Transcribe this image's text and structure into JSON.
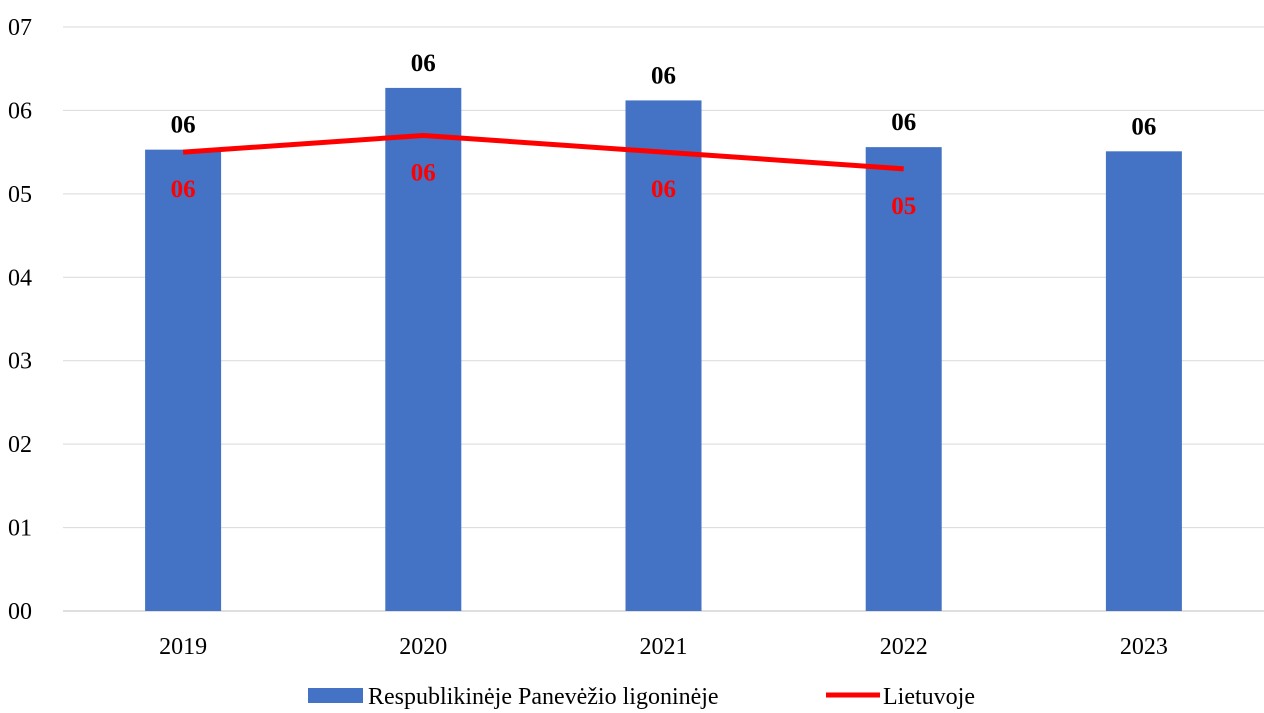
{
  "chart_data": {
    "type": "bar",
    "categories": [
      "2019",
      "2020",
      "2021",
      "2022",
      "2023"
    ],
    "y_ticks": [
      "00",
      "01",
      "02",
      "03",
      "04",
      "05",
      "06",
      "07"
    ],
    "ylim": [
      0,
      0.7
    ],
    "grid": true,
    "legend_position": "bottom",
    "series": [
      {
        "name": "Respublikinėje Panevėžio ligoninėje",
        "type": "bar",
        "color": "#4472C4",
        "values": [
          0.553,
          0.627,
          0.612,
          0.556,
          0.551
        ],
        "labels": [
          "06",
          "06",
          "06",
          "06",
          "06"
        ]
      },
      {
        "name": "Lietuvoje",
        "type": "line",
        "color": "#FF0000",
        "values": [
          0.55,
          0.57,
          0.55,
          0.53,
          null
        ],
        "labels": [
          "06",
          "06",
          "06",
          "05",
          null
        ]
      }
    ]
  }
}
